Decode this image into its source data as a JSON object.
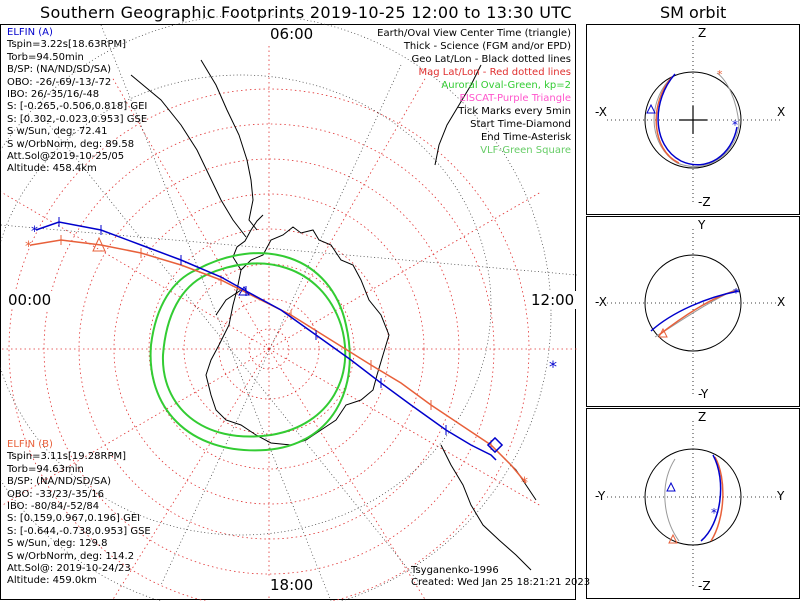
{
  "title": "Southern Geographic Footprints 2019-10-25 12:00 to 13:30 UTC",
  "sm_title": "SM orbit",
  "clock_labels": {
    "top": "06:00",
    "left": "00:00",
    "right": "12:00",
    "bottom": "18:00"
  },
  "colors": {
    "elfin_a": "#0000cc",
    "elfin_b": "#e8603a",
    "grid": "#e03030",
    "oval": "#33cc33",
    "eiscat": "#ff55cc",
    "vlf": "#66cc66"
  },
  "elfin_a": {
    "lines": [
      "ELFIN (A)",
      "Tspin=3.22s[18.63RPM]",
      "Torb=94.50min",
      "B/SP: (NA/ND/SD/SA)",
      "OBO: -26/-69/-13/-72",
      "IBO: 26/-35/16/-48",
      "S: [-0.265,-0.506,0.818] GEI",
      "S: [0.302,-0.023,0.953] GSE",
      "S w/Sun, deg: 72.41",
      "S w/OrbNorm, deg: 89.58",
      "Att.Sol@2019-10-25/05",
      "Altitude: 458.4km"
    ]
  },
  "elfin_b": {
    "lines": [
      "ELFIN (B)",
      "Tspin=3.11s[19.28RPM]",
      "Torb=94.63min",
      "B/SP: (NA/ND/SD/SA)",
      "OBO: -33/23/-35/16",
      "IBO: -80/84/-52/84",
      "S: [0.159,0.967,0.196] GEI",
      "S: [-0.644,-0.738,0.953] GSE",
      "S w/Sun, deg: 129.8",
      "S w/OrbNorm, deg: 114.2",
      "Att.Sol@: 2019-10-24/23",
      "Altitude: 459.0km"
    ]
  },
  "legend": [
    {
      "text": "Earth/Oval View Center Time (triangle)",
      "color": "#000000"
    },
    {
      "text": "Thick - Science (FGM and/or EPD)",
      "color": "#000000"
    },
    {
      "text": "Geo Lat/Lon - Black dotted lines",
      "color": "#000000"
    },
    {
      "text": "Mag Lat/Lon - Red dotted lines",
      "color": "#e03030"
    },
    {
      "text": "Auroral Oval-Green, kp=2",
      "color": "#33cc33"
    },
    {
      "text": "EISCAT-Purple Triangle",
      "color": "#ff55cc"
    },
    {
      "text": "Tick Marks every 5min",
      "color": "#000000"
    },
    {
      "text": "Start Time-Diamond",
      "color": "#000000"
    },
    {
      "text": "End Time-Asterisk",
      "color": "#000000"
    },
    {
      "text": "VLF-Green Square",
      "color": "#66cc66"
    }
  ],
  "credit": {
    "author": "Tsyganenko-1996",
    "created": "Created: Wed Jan 25 18:21:21 2023"
  },
  "sm_panels": [
    {
      "top": "Z",
      "bottom": "-Z",
      "left": "-X",
      "right": "X"
    },
    {
      "top": "Y",
      "bottom": "-Y",
      "left": "-X",
      "right": "X"
    },
    {
      "top": "Z",
      "bottom": "-Z",
      "left": "-Y",
      "right": "Y"
    }
  ]
}
